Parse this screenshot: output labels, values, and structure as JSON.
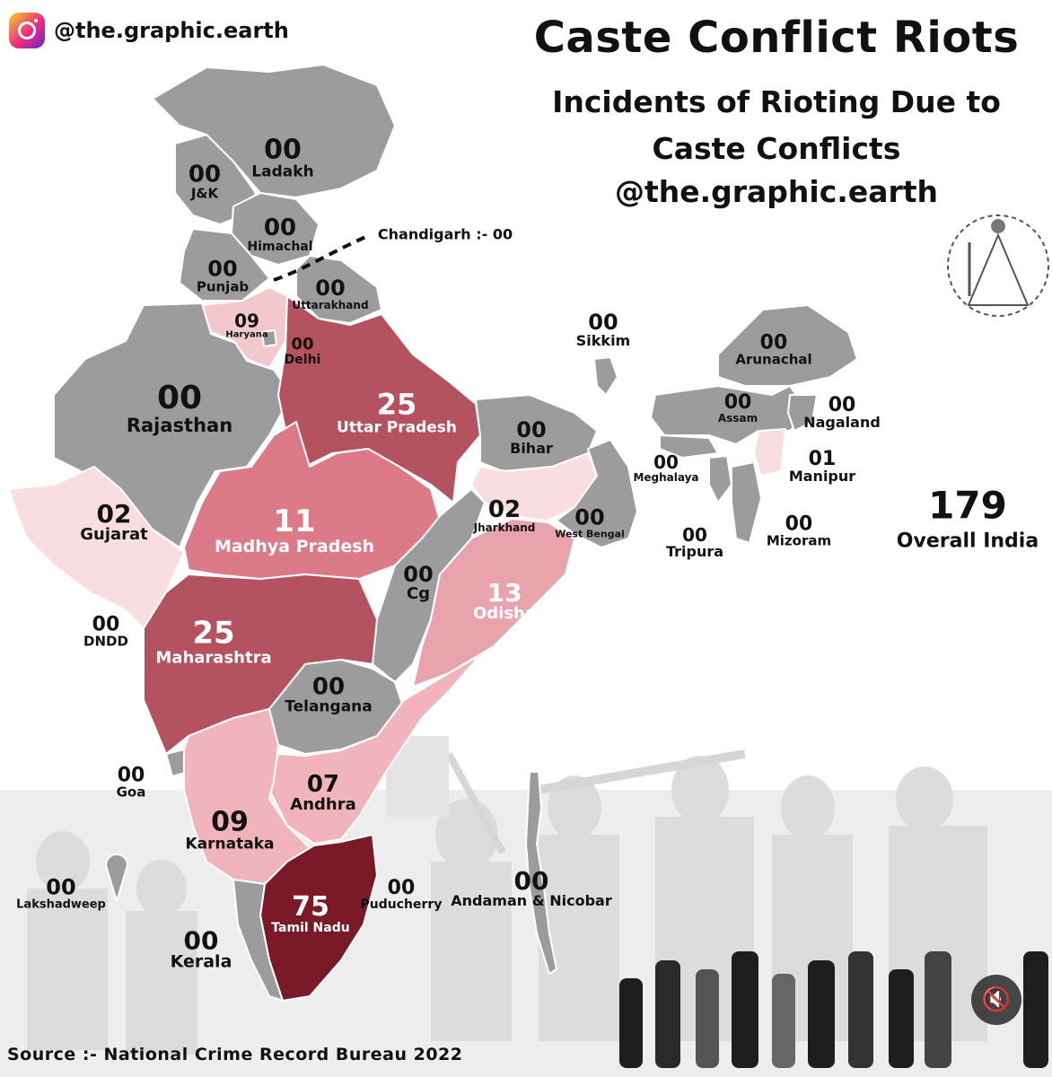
{
  "header": {
    "handle": "@the.graphic.earth",
    "title": "Caste Conflict Riots",
    "subtitle_line1": "Incidents of Rioting Due to",
    "subtitle_line2": "Caste Conflicts",
    "handle2": "@the.graphic.earth"
  },
  "overall": {
    "value": "179",
    "label": "Overall India"
  },
  "chandigarh_note": "Chandigarh :- 00",
  "source": "Source :- National Crime Record Bureau 2022",
  "icons": {
    "instagram": "instagram-icon",
    "mute": "speaker-muted-icon",
    "logo": "caste-pyramid-icon"
  },
  "colors": {
    "zero": "#9c9c9c",
    "low": "#f9dde0",
    "mid": "#e9a3ad",
    "high": "#dd7a87",
    "very_high": "#b5525f",
    "top": "#7a1a26"
  },
  "regions": [
    {
      "id": "ladakh",
      "name": "Ladakh",
      "value": "00"
    },
    {
      "id": "jk",
      "name": "J&K",
      "value": "00"
    },
    {
      "id": "himachal",
      "name": "Himachal",
      "value": "00"
    },
    {
      "id": "punjab",
      "name": "Punjab",
      "value": "00"
    },
    {
      "id": "uttarakhand",
      "name": "Uttarakhand",
      "value": "00"
    },
    {
      "id": "haryana",
      "name": "Haryana",
      "value": "09"
    },
    {
      "id": "delhi",
      "name": "Delhi",
      "value": "00"
    },
    {
      "id": "rajasthan",
      "name": "Rajasthan",
      "value": "00"
    },
    {
      "id": "up",
      "name": "Uttar Pradesh",
      "value": "25"
    },
    {
      "id": "bihar",
      "name": "Bihar",
      "value": "00"
    },
    {
      "id": "sikkim",
      "name": "Sikkim",
      "value": "00"
    },
    {
      "id": "arunachal",
      "name": "Arunachal",
      "value": "00"
    },
    {
      "id": "assam",
      "name": "Assam",
      "value": "00"
    },
    {
      "id": "nagaland",
      "name": "Nagaland",
      "value": "00"
    },
    {
      "id": "meghalaya",
      "name": "Meghalaya",
      "value": "00"
    },
    {
      "id": "manipur",
      "name": "Manipur",
      "value": "01"
    },
    {
      "id": "tripura",
      "name": "Tripura",
      "value": "00"
    },
    {
      "id": "mizoram",
      "name": "Mizoram",
      "value": "00"
    },
    {
      "id": "gujarat",
      "name": "Gujarat",
      "value": "02"
    },
    {
      "id": "mp",
      "name": "Madhya Pradesh",
      "value": "11"
    },
    {
      "id": "jharkhand",
      "name": "Jharkhand",
      "value": "02"
    },
    {
      "id": "westbengal",
      "name": "West Bengal",
      "value": "00"
    },
    {
      "id": "cg",
      "name": "Cg",
      "value": "00"
    },
    {
      "id": "odisha",
      "name": "Odisha",
      "value": "13"
    },
    {
      "id": "dndd",
      "name": "DNDD",
      "value": "00"
    },
    {
      "id": "maharashtra",
      "name": "Maharashtra",
      "value": "25"
    },
    {
      "id": "telangana",
      "name": "Telangana",
      "value": "00"
    },
    {
      "id": "goa",
      "name": "Goa",
      "value": "00"
    },
    {
      "id": "andhra",
      "name": "Andhra",
      "value": "07"
    },
    {
      "id": "karnataka",
      "name": "Karnataka",
      "value": "09"
    },
    {
      "id": "lakshadweep",
      "name": "Lakshadweep",
      "value": "00"
    },
    {
      "id": "puducherry",
      "name": "Puducherry",
      "value": "00"
    },
    {
      "id": "tamilnadu",
      "name": "Tamil Nadu",
      "value": "75"
    },
    {
      "id": "kerala",
      "name": "Kerala",
      "value": "00"
    },
    {
      "id": "andaman",
      "name": "Andaman & Nicobar",
      "value": "00"
    }
  ]
}
